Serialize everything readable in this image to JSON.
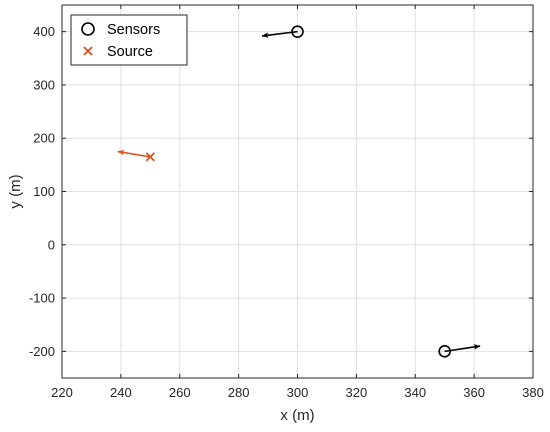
{
  "chart_data": {
    "type": "scatter",
    "xlabel": "x (m)",
    "ylabel": "y (m)",
    "xlim": [
      220,
      380
    ],
    "ylim": [
      -250,
      450
    ],
    "xticks": [
      220,
      240,
      260,
      280,
      300,
      320,
      340,
      360,
      380
    ],
    "yticks": [
      -200,
      -100,
      0,
      100,
      200,
      300,
      400
    ],
    "grid": true,
    "legend_position": "top-left",
    "series": [
      {
        "name": "Sensors",
        "marker": "circle",
        "color": "#000000",
        "points": [
          {
            "x": 300,
            "y": 400,
            "velocity_arrow_to": {
              "x": 288,
              "y": 392
            }
          },
          {
            "x": 350,
            "y": -200,
            "velocity_arrow_to": {
              "x": 362,
              "y": -190
            }
          }
        ]
      },
      {
        "name": "Source",
        "marker": "x",
        "color": "#D95319",
        "points": [
          {
            "x": 250,
            "y": 165,
            "velocity_arrow_to": {
              "x": 239,
              "y": 175
            }
          }
        ]
      }
    ]
  }
}
